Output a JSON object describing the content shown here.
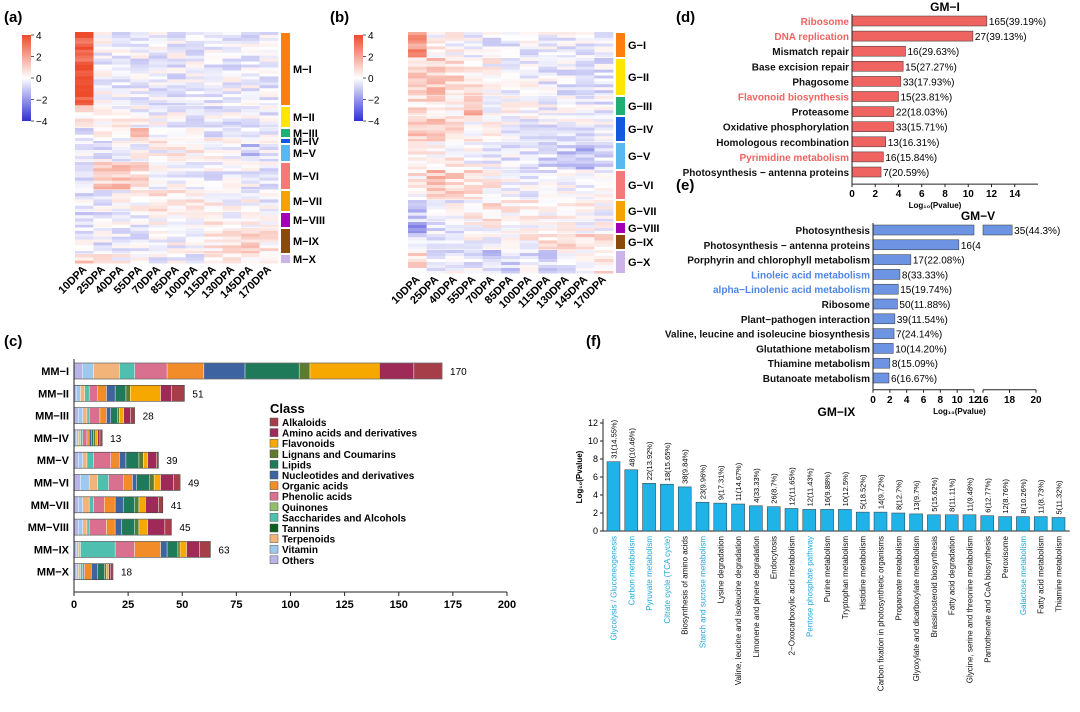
{
  "colors": {
    "heat_high": "#ee4b2b",
    "heat_mid": "#ffffff",
    "heat_low": "#2f2fd6",
    "bar_red": "#ef6461",
    "bar_blue": "#6d93e3",
    "bar_cyan": "#1fb3e8",
    "label_red": "#ef6461",
    "label_blue": "#4d86e8",
    "label_cyan": "#1fa9dc"
  },
  "chart_data": [
    {
      "panel": "(a)",
      "type": "heatmap",
      "colorbar_ticks": [
        "4",
        "2",
        "0",
        "−2",
        "−4"
      ],
      "x_labels": [
        "10DPA",
        "25DPA",
        "40DPA",
        "55DPA",
        "70DPA",
        "85DPA",
        "100DPA",
        "115DPA",
        "130DPA",
        "145DPA",
        "170DPA"
      ],
      "clusters": [
        {
          "name": "M−I",
          "color": "#ff7f0e"
        },
        {
          "name": "M−II",
          "color": "#ffe600"
        },
        {
          "name": "M−III",
          "color": "#1fae74"
        },
        {
          "name": "M−IV",
          "color": "#1558e0"
        },
        {
          "name": "M−V",
          "color": "#5ab8f0"
        },
        {
          "name": "M−VI",
          "color": "#f47a7a"
        },
        {
          "name": "M−VII",
          "color": "#f5a300"
        },
        {
          "name": "M−VIII",
          "color": "#a100b4"
        },
        {
          "name": "M−IX",
          "color": "#8a4a0c"
        },
        {
          "name": "M−X",
          "color": "#cdb4e8"
        }
      ]
    },
    {
      "panel": "(b)",
      "type": "heatmap",
      "colorbar_ticks": [
        "4",
        "2",
        "0",
        "−2",
        "−4"
      ],
      "x_labels": [
        "10DPA",
        "25DPA",
        "40DPA",
        "55DPA",
        "70DPA",
        "85DPA",
        "100DPA",
        "115DPA",
        "130DPA",
        "145DPA",
        "170DPA"
      ],
      "clusters": [
        {
          "name": "G−I",
          "color": "#ff7f0e"
        },
        {
          "name": "G−II",
          "color": "#ffe600"
        },
        {
          "name": "G−III",
          "color": "#1fae74"
        },
        {
          "name": "G−IV",
          "color": "#1558e0"
        },
        {
          "name": "G−V",
          "color": "#5ab8f0"
        },
        {
          "name": "G−VI",
          "color": "#f47a7a"
        },
        {
          "name": "G−VII",
          "color": "#f5a300"
        },
        {
          "name": "G−VIII",
          "color": "#a100b4"
        },
        {
          "name": "G−IX",
          "color": "#8a4a0c"
        },
        {
          "name": "G−X",
          "color": "#cdb4e8"
        }
      ]
    },
    {
      "panel": "(c)",
      "type": "bar",
      "orientation": "horizontal",
      "stacked": true,
      "categories": [
        "MM−I",
        "MM−II",
        "MM−III",
        "MM−IV",
        "MM−V",
        "MM−VI",
        "MM−VII",
        "MM−VIII",
        "MM−IX",
        "MM−X"
      ],
      "totals": [
        170,
        51,
        28,
        13,
        39,
        49,
        41,
        45,
        63,
        18
      ],
      "xlim": [
        0,
        200
      ],
      "xticks": [
        "0",
        "25",
        "50",
        "75",
        "100",
        "125",
        "150",
        "175",
        "200"
      ],
      "legend_title": "Class",
      "legend_position": "right",
      "classes": [
        {
          "name": "Alkaloids",
          "color": "#a63e4a"
        },
        {
          "name": "Amino acids and derivatives",
          "color": "#9e2a58"
        },
        {
          "name": "Flavonoids",
          "color": "#f6a800"
        },
        {
          "name": "Lignans and Coumarins",
          "color": "#5f7a2f"
        },
        {
          "name": "Lipids",
          "color": "#1f7a5a"
        },
        {
          "name": "Nucleotides and derivatives",
          "color": "#3d63a0"
        },
        {
          "name": "Organic acids",
          "color": "#f28c28"
        },
        {
          "name": "Phenolic acids",
          "color": "#d9708f"
        },
        {
          "name": "Quinones",
          "color": "#8fbf6a"
        },
        {
          "name": "Saccharides and Alcohols",
          "color": "#4fc0b0"
        },
        {
          "name": "Tannins",
          "color": "#0b5e1e"
        },
        {
          "name": "Terpenoids",
          "color": "#f3b47a"
        },
        {
          "name": "Vitamin",
          "color": "#9ec9ef"
        },
        {
          "name": "Others",
          "color": "#b9b4e6"
        }
      ],
      "series": [
        {
          "name": "Others",
          "values": [
            4,
            1,
            2,
            1,
            2,
            3,
            2,
            2,
            1,
            1
          ]
        },
        {
          "name": "Vitamin",
          "values": [
            5,
            2,
            2,
            1,
            2,
            4,
            2,
            2,
            1,
            1
          ]
        },
        {
          "name": "Terpenoids",
          "values": [
            12,
            2,
            2,
            1,
            2,
            4,
            3,
            2,
            1,
            1
          ]
        },
        {
          "name": "Saccharides and Alcohols",
          "values": [
            7,
            2,
            1,
            1,
            3,
            5,
            2,
            1,
            16,
            1
          ]
        },
        {
          "name": "Phenolic acids",
          "values": [
            15,
            4,
            5,
            2,
            8,
            7,
            5,
            8,
            9,
            1
          ]
        },
        {
          "name": "Organic acids",
          "values": [
            17,
            4,
            3,
            1,
            4,
            4,
            5,
            4,
            12,
            3
          ]
        },
        {
          "name": "Nucleotides and derivatives",
          "values": [
            19,
            4,
            2,
            1,
            3,
            2,
            4,
            3,
            3,
            3
          ]
        },
        {
          "name": "Lipids",
          "values": [
            25,
            5,
            3,
            1,
            6,
            6,
            5,
            6,
            5,
            3
          ]
        },
        {
          "name": "Lignans and Coumarins",
          "values": [
            5,
            2,
            1,
            1,
            2,
            2,
            2,
            2,
            1,
            1
          ]
        },
        {
          "name": "Flavonoids",
          "values": [
            32,
            14,
            2,
            1,
            2,
            3,
            3,
            4,
            3,
            1
          ]
        },
        {
          "name": "Amino acids and derivatives",
          "values": [
            16,
            5,
            3,
            1,
            4,
            6,
            6,
            8,
            6,
            1
          ]
        },
        {
          "name": "Alkaloids",
          "values": [
            13,
            6,
            2,
            1,
            1,
            3,
            2,
            3,
            5,
            1
          ]
        }
      ]
    },
    {
      "panel": "(d)",
      "type": "bar",
      "orientation": "horizontal",
      "title": "GM−I",
      "xlabel": "Log₁₀(Pvalue)",
      "xlim": [
        0,
        16
      ],
      "xticks": [
        "0",
        "2",
        "4",
        "6",
        "8",
        "10",
        "12",
        "14"
      ],
      "categories": [
        "Ribosome",
        "DNA replication",
        "Mismatch repair",
        "Base excision repair",
        "Phagosome",
        "Flavonoid biosynthesis",
        "Proteasome",
        "Oxidative phosphorylation",
        "Homologous recombination",
        "Pyrimidine metabolism",
        "Photosynthesis − antenna proteins"
      ],
      "values": [
        11.6,
        10.4,
        4.6,
        4.4,
        4.2,
        4.0,
        3.6,
        3.6,
        2.9,
        2.7,
        2.5
      ],
      "data_labels": [
        "165(39.19%)",
        "27(39.13%)",
        "16(29.63%)",
        "15(27.27%)",
        "33(17.93%)",
        "15(23.81%)",
        "22(18.03%)",
        "33(15.71%)",
        "13(16.31%)",
        "16(15.84%)",
        "7(20.59%)"
      ],
      "highlighted": [
        true,
        true,
        false,
        false,
        false,
        true,
        false,
        false,
        false,
        true,
        false
      ]
    },
    {
      "panel": "(e)",
      "type": "bar",
      "orientation": "horizontal",
      "title": "GM−V",
      "xlabel": "Log₁₀(Pvalue)",
      "axis_break": [
        12,
        16
      ],
      "xlim": [
        0,
        20
      ],
      "xticks": [
        "0",
        "2",
        "4",
        "6",
        "8",
        "10",
        "12",
        "16",
        "18",
        "20"
      ],
      "categories": [
        "Photosynthesis",
        "Photosynthesis − antenna proteins",
        "Porphyrin and chlorophyll metabolism",
        "Linoleic acid metabolism",
        "alpha−Linolenic acid metabolism",
        "Ribosome",
        "Plant−pathogen interaction",
        "Valine, leucine and isoleucine biosynthesis",
        "Glutathione metabolism",
        "Thiamine metabolism",
        "Butanoate metabolism"
      ],
      "values": [
        18.2,
        10.2,
        4.5,
        3.2,
        3.0,
        2.9,
        2.6,
        2.5,
        2.4,
        2.0,
        1.9
      ],
      "data_labels": [
        "35(44.3%)",
        "16(4",
        "17(22.08%)",
        "8(33.33%)",
        "15(19.74%)",
        "50(11.88%)",
        "39(11.54%)",
        "7(24.14%)",
        "10(14.20%)",
        "8(15.09%)",
        "6(16.67%)"
      ],
      "highlighted": [
        false,
        false,
        false,
        true,
        true,
        false,
        false,
        false,
        false,
        false,
        false
      ]
    },
    {
      "panel": "(f)",
      "type": "bar",
      "orientation": "vertical",
      "title": "GM−IX",
      "ylabel": "Log₁₀(Pvalue)",
      "ylim": [
        0,
        12
      ],
      "yticks": [
        "0",
        "2",
        "4",
        "6",
        "8",
        "10",
        "12"
      ],
      "categories": [
        "Glycolysis / Gluconeogenesis",
        "Carbon metabolism",
        "Pyruvate metabolism",
        "Citrate cycle (TCA cycle)",
        "Biosynthesis of amino acids",
        "Starch and sucrose metabolism",
        "Lysine degradation",
        "Valine, leucine and isoleucine degradation",
        "Limonene and pinene degradation",
        "Endocytosis",
        "2−Oxocarboxylic acid metabolism",
        "Pentose phosphate pathway",
        "Purine metabolism",
        "Tryptophan metabolism",
        "Histidine metabolism",
        "Carbon fixation in photosynthetic organisms",
        "Propanoate metabolism",
        "Glyoxylate and dicarboxylate metabolism",
        "Brassinosteroid biosynthesis",
        "Fatty acid degradation",
        "Glycine, serine and threonine metabolism",
        "Pantothenate and CoA biosynthesis",
        "Peroxisome",
        "Galactose metabolism",
        "Fatty acid metabolism",
        "Thiamine metabolism"
      ],
      "values": [
        7.7,
        6.8,
        5.3,
        5.2,
        4.9,
        3.2,
        3.1,
        3.0,
        2.8,
        2.7,
        2.5,
        2.4,
        2.4,
        2.4,
        2.1,
        2.1,
        2.0,
        1.9,
        1.8,
        1.8,
        1.8,
        1.7,
        1.6,
        1.6,
        1.6,
        1.5
      ],
      "data_labels": [
        "31(14.55%)",
        "48(10.46%)",
        "22(13.92%)",
        "18(15.65%)",
        "38(9.84%)",
        "23(9.96%)",
        "9(17.31%)",
        "11(14.67%)",
        "4(33.33%)",
        "26(8.7%)",
        "12(11.65%)",
        "12(11.43%)",
        "16(9.88%)",
        "10(12.5%)",
        "5(18.52%)",
        "14(9.72%)",
        "8(12.7%)",
        "13(9.7%)",
        "5(15.62%)",
        "8(11.11%)",
        "11(9.48%)",
        "6(12.77%)",
        "12(8.76%)",
        "8(10.26%)",
        "11(8.73%)",
        "5(11.32%)"
      ],
      "highlighted": [
        true,
        true,
        true,
        true,
        false,
        true,
        false,
        false,
        false,
        false,
        false,
        true,
        false,
        false,
        false,
        false,
        false,
        false,
        false,
        false,
        false,
        false,
        false,
        true,
        false,
        false
      ]
    }
  ]
}
